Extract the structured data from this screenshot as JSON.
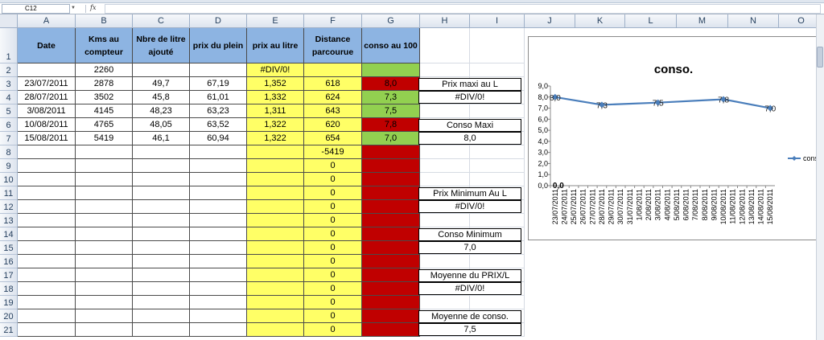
{
  "namebox": "C12",
  "fx": "fx",
  "columns": [
    "A",
    "B",
    "C",
    "D",
    "E",
    "F",
    "G",
    "H",
    "I",
    "J",
    "K",
    "L",
    "M",
    "N",
    "O"
  ],
  "rows": [
    "1",
    "2",
    "3",
    "4",
    "5",
    "6",
    "7",
    "8",
    "9",
    "10",
    "11",
    "12",
    "13",
    "14",
    "15",
    "16",
    "17",
    "18",
    "19",
    "20",
    "21"
  ],
  "headers": {
    "date": "Date",
    "kms": "Kms au compteur",
    "litres": "Nbre de litre ajouté",
    "plein": "prix du plein",
    "litre": "prix au litre",
    "distance": "Distance parcourue",
    "conso": "conso au 100"
  },
  "row2": {
    "kms": "2260",
    "litre": "#DIV/0!"
  },
  "data": [
    {
      "date": "23/07/2011",
      "kms": "2878",
      "litres": "49,7",
      "plein": "67,19",
      "litre": "1,352",
      "distance": "618",
      "conso": "8,0"
    },
    {
      "date": "28/07/2011",
      "kms": "3502",
      "litres": "45,8",
      "plein": "61,01",
      "litre": "1,332",
      "distance": "624",
      "conso": "7,3"
    },
    {
      "date": "3/08/2011",
      "kms": "4145",
      "litres": "48,23",
      "plein": "63,23",
      "litre": "1,311",
      "distance": "643",
      "conso": "7,5"
    },
    {
      "date": "10/08/2011",
      "kms": "4765",
      "litres": "48,05",
      "plein": "63,52",
      "litre": "1,322",
      "distance": "620",
      "conso": "7,8"
    },
    {
      "date": "15/08/2011",
      "kms": "5419",
      "litres": "46,1",
      "plein": "60,94",
      "litre": "1,322",
      "distance": "654",
      "conso": "7,0"
    }
  ],
  "row8_distance": "-5419",
  "zero": "0",
  "boxes": {
    "prix_maxi_label": "Prix maxi au L",
    "prix_maxi_value": "#DIV/0!",
    "conso_maxi_label": "Conso Maxi",
    "conso_maxi_value": "8,0",
    "prix_min_label": "Prix Minimum Au L",
    "prix_min_value": "#DIV/0!",
    "conso_min_label": "Conso Minimum",
    "conso_min_value": "7,0",
    "moy_prix_label": "Moyenne du PRIX/L",
    "moy_prix_value": "#DIV/0!",
    "moy_conso_label": "Moyenne de conso.",
    "moy_conso_value": "7,5"
  },
  "colors": {
    "header": "#8db4e2",
    "yellow": "#ffff66",
    "dark_red": "#c00000",
    "bright_red": "#ff0000",
    "green": "#92d050",
    "teal": "#31859c",
    "series": "#4a7ebb"
  },
  "chart_data": {
    "type": "line",
    "title": "conso.",
    "x": [
      "23/07/2011",
      "24/07/2011",
      "25/07/2011",
      "26/07/2011",
      "27/07/2011",
      "28/07/2011",
      "29/07/2011",
      "30/07/2011",
      "31/07/2011",
      "1/08/2011",
      "2/08/2011",
      "3/08/2011",
      "4/08/2011",
      "5/08/2011",
      "6/08/2011",
      "7/08/2011",
      "8/08/2011",
      "9/08/2011",
      "10/08/2011",
      "11/08/2011",
      "12/08/2011",
      "13/08/2011",
      "14/08/2011",
      "15/08/2011"
    ],
    "yticks": [
      "0,0",
      "1,0",
      "2,0",
      "3,0",
      "4,0",
      "5,0",
      "6,0",
      "7,0",
      "8,0",
      "9,0"
    ],
    "ylim": [
      0,
      9
    ],
    "series": [
      {
        "name": "conso",
        "points": [
          {
            "x": "23/07/2011",
            "y": 8.0,
            "label": "8,0"
          },
          {
            "x": "28/07/2011",
            "y": 7.3,
            "label": "7,3"
          },
          {
            "x": "3/08/2011",
            "y": 7.5,
            "label": "7,5"
          },
          {
            "x": "10/08/2011",
            "y": 7.8,
            "label": "7,8"
          },
          {
            "x": "15/08/2011",
            "y": 7.0,
            "label": "7,0"
          }
        ],
        "extra_label": {
          "x": "23/07/2011",
          "y": 0,
          "label": "0,0"
        }
      }
    ],
    "legend": "right",
    "grid": false
  }
}
